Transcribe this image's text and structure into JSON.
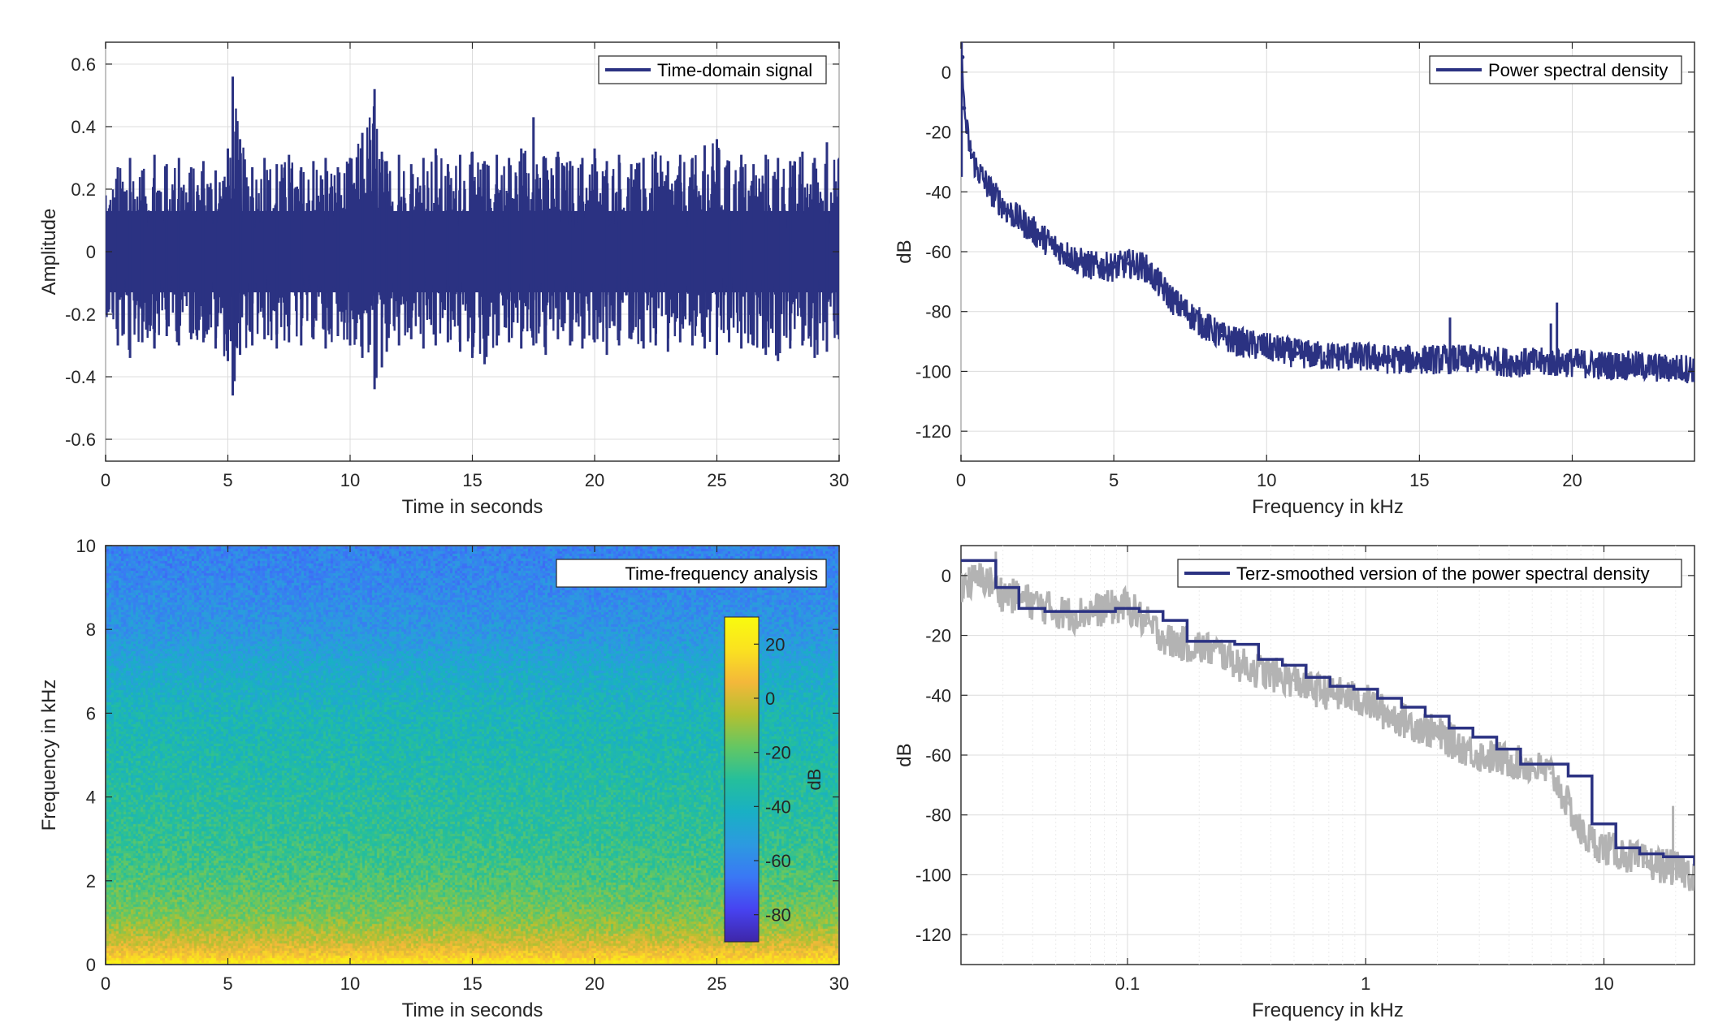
{
  "colors": {
    "signal": "#2B3282",
    "smooth_raw": "#B3B3B3",
    "axis": "#262626",
    "grid": "#DCDCDC"
  },
  "chart_data": [
    {
      "id": "time-domain",
      "type": "line",
      "xlabel": "Time in seconds",
      "ylabel": "Amplitude",
      "xlim": [
        0,
        30
      ],
      "ylim": [
        -0.67,
        0.67
      ],
      "xticks": [
        0,
        5,
        10,
        15,
        20,
        25,
        30
      ],
      "yticks": [
        -0.6,
        -0.4,
        -0.2,
        0,
        0.2,
        0.4,
        0.6
      ],
      "xtick_labels": [
        "0",
        "5",
        "10",
        "15",
        "20",
        "25",
        "30"
      ],
      "ytick_labels": [
        "-0.6",
        "-0.4",
        "-0.2",
        "0",
        "0.2",
        "0.4",
        "0.6"
      ],
      "grid": true,
      "legend_position": "top-right",
      "series": [
        {
          "name": "Time-domain signal",
          "x": [
            0,
            0.5,
            1,
            1.5,
            2,
            2.5,
            3,
            3.5,
            4,
            4.5,
            5,
            5.2,
            5.5,
            6,
            6.5,
            7,
            7.5,
            8,
            8.5,
            9,
            9.5,
            10,
            10.5,
            11,
            11.3,
            11.5,
            12,
            12.5,
            13,
            13.5,
            14,
            14.5,
            15,
            15.5,
            16,
            16.5,
            17,
            17.5,
            18,
            18.5,
            19,
            19.5,
            20,
            20.5,
            21,
            21.5,
            22,
            22.5,
            23,
            23.5,
            24,
            24.5,
            25,
            25.5,
            26,
            26.5,
            27,
            27.5,
            28,
            28.5,
            29,
            29.5,
            30
          ],
          "upper": [
            0.18,
            0.27,
            0.3,
            0.26,
            0.31,
            0.28,
            0.3,
            0.27,
            0.29,
            0.26,
            0.33,
            0.56,
            0.36,
            0.27,
            0.3,
            0.28,
            0.31,
            0.27,
            0.29,
            0.3,
            0.27,
            0.3,
            0.38,
            0.52,
            0.32,
            0.29,
            0.31,
            0.28,
            0.3,
            0.33,
            0.28,
            0.31,
            0.32,
            0.29,
            0.31,
            0.3,
            0.33,
            0.43,
            0.3,
            0.32,
            0.29,
            0.3,
            0.33,
            0.29,
            0.31,
            0.28,
            0.3,
            0.32,
            0.29,
            0.31,
            0.3,
            0.34,
            0.36,
            0.29,
            0.31,
            0.28,
            0.31,
            0.3,
            0.29,
            0.32,
            0.3,
            0.35,
            0.3
          ],
          "lower": [
            -0.2,
            -0.3,
            -0.34,
            -0.29,
            -0.31,
            -0.27,
            -0.3,
            -0.28,
            -0.29,
            -0.31,
            -0.35,
            -0.46,
            -0.33,
            -0.3,
            -0.28,
            -0.31,
            -0.29,
            -0.3,
            -0.28,
            -0.31,
            -0.27,
            -0.3,
            -0.34,
            -0.44,
            -0.37,
            -0.32,
            -0.3,
            -0.28,
            -0.31,
            -0.3,
            -0.29,
            -0.32,
            -0.34,
            -0.36,
            -0.3,
            -0.29,
            -0.31,
            -0.3,
            -0.33,
            -0.28,
            -0.3,
            -0.31,
            -0.29,
            -0.33,
            -0.3,
            -0.28,
            -0.31,
            -0.3,
            -0.32,
            -0.29,
            -0.3,
            -0.31,
            -0.33,
            -0.29,
            -0.31,
            -0.3,
            -0.33,
            -0.35,
            -0.31,
            -0.3,
            -0.34,
            -0.32,
            -0.28
          ]
        }
      ]
    },
    {
      "id": "psd",
      "type": "line",
      "xlabel": "Frequency in kHz",
      "ylabel": "dB",
      "xlim": [
        0,
        24
      ],
      "ylim": [
        -130,
        10
      ],
      "xticks": [
        0,
        5,
        10,
        15,
        20
      ],
      "yticks": [
        -120,
        -100,
        -80,
        -60,
        -40,
        -20,
        0
      ],
      "xtick_labels": [
        "0",
        "5",
        "10",
        "15",
        "20"
      ],
      "ytick_labels": [
        "-120",
        "-100",
        "-80",
        "-60",
        "-40",
        "-20",
        "0"
      ],
      "grid": true,
      "legend_position": "top-right",
      "series": [
        {
          "name": "Power spectral density",
          "x": [
            0,
            0.05,
            0.1,
            0.2,
            0.3,
            0.5,
            1,
            1.5,
            2,
            2.5,
            3,
            3.5,
            4,
            4.5,
            5,
            5.5,
            6,
            6.5,
            7,
            7.5,
            8,
            8.5,
            9,
            10,
            11,
            12,
            13,
            14,
            15,
            16,
            17,
            18,
            19,
            20,
            21,
            22,
            23,
            24
          ],
          "values": [
            -5,
            5,
            -12,
            -20,
            -26,
            -32,
            -40,
            -46,
            -50,
            -54,
            -58,
            -61,
            -64,
            -65,
            -65,
            -64,
            -65,
            -71,
            -77,
            -81,
            -85,
            -88,
            -90,
            -92,
            -94,
            -95,
            -95,
            -96,
            -96,
            -96,
            -96,
            -97,
            -97,
            -97,
            -98,
            -98,
            -99,
            -99
          ],
          "band_width": 5,
          "spikes": [
            [
              16,
              -82
            ],
            [
              19.5,
              -77
            ],
            [
              19.3,
              -84
            ]
          ]
        }
      ]
    },
    {
      "id": "spectrogram",
      "type": "heatmap",
      "xlabel": "Time in seconds",
      "ylabel": "Frequency in kHz",
      "xlim": [
        0,
        30
      ],
      "ylim": [
        0,
        10
      ],
      "xticks": [
        0,
        5,
        10,
        15,
        20,
        25,
        30
      ],
      "yticks": [
        0,
        2,
        4,
        6,
        8,
        10
      ],
      "xtick_labels": [
        "0",
        "5",
        "10",
        "15",
        "20",
        "25",
        "30"
      ],
      "ytick_labels": [
        "0",
        "2",
        "4",
        "6",
        "8",
        "10"
      ],
      "legend_position": "top-right",
      "legend_label": "Time-frequency analysis",
      "freq_profile_khz": [
        0,
        0.2,
        0.5,
        1,
        1.5,
        2,
        3,
        4,
        5,
        6,
        7,
        8,
        9,
        10
      ],
      "freq_profile_db": [
        25,
        12,
        0,
        -12,
        -18,
        -22,
        -28,
        -32,
        -35,
        -38,
        -45,
        -55,
        -60,
        -62
      ],
      "colorbar": {
        "label": "dB",
        "range": [
          -90,
          30
        ],
        "ticks": [
          -80,
          -60,
          -40,
          -20,
          0,
          20
        ],
        "tick_labels": [
          "-80",
          "-60",
          "-40",
          "-20",
          "0",
          "20"
        ],
        "colormap": [
          "#3E26A8",
          "#4743F1",
          "#3A78F5",
          "#2C9AE0",
          "#19B0C4",
          "#25BF9B",
          "#64C763",
          "#B4C030",
          "#F4B83A",
          "#FAE220",
          "#F9FB0E"
        ]
      }
    },
    {
      "id": "terz",
      "type": "line",
      "xlabel": "Frequency in kHz",
      "ylabel": "dB",
      "xscale": "log",
      "xlim": [
        0.02,
        24
      ],
      "ylim": [
        -130,
        10
      ],
      "xticks": [
        0.1,
        1,
        10
      ],
      "yticks": [
        -120,
        -100,
        -80,
        -60,
        -40,
        -20,
        0
      ],
      "xtick_labels": [
        "0.1",
        "1",
        "10"
      ],
      "ytick_labels": [
        "-120",
        "-100",
        "-80",
        "-60",
        "-40",
        "-20",
        "0"
      ],
      "grid": true,
      "legend_position": "top-right",
      "series": [
        {
          "name": "Terz-smoothed version of the power spectral density",
          "edges": [
            0.02,
            0.028,
            0.035,
            0.045,
            0.056,
            0.071,
            0.089,
            0.112,
            0.141,
            0.178,
            0.224,
            0.282,
            0.355,
            0.447,
            0.562,
            0.708,
            0.891,
            1.122,
            1.413,
            1.778,
            2.239,
            2.818,
            3.548,
            4.467,
            5.623,
            7.079,
            8.913,
            11.22,
            14.13,
            17.78,
            24
          ],
          "levels": [
            5,
            -4,
            -11,
            -12,
            -12,
            -12,
            -11,
            -12,
            -15,
            -22,
            -22,
            -23,
            -28,
            -30,
            -34,
            -37,
            -38,
            -41,
            -44,
            -47,
            -51,
            -54,
            -58,
            -63,
            -63,
            -67,
            -83,
            -91,
            -93,
            -94,
            -97
          ]
        },
        {
          "name": "",
          "x": [
            0.02,
            0.025,
            0.03,
            0.04,
            0.05,
            0.06,
            0.08,
            0.1,
            0.12,
            0.15,
            0.2,
            0.25,
            0.3,
            0.4,
            0.5,
            0.6,
            0.8,
            1,
            1.2,
            1.5,
            2,
            2.5,
            3,
            4,
            5,
            6,
            7,
            8,
            9,
            10,
            12,
            15,
            18,
            20,
            24
          ],
          "values": [
            -3,
            -1,
            -6,
            -9,
            -12,
            -13,
            -11,
            -10,
            -16,
            -22,
            -24,
            -26,
            -30,
            -33,
            -35,
            -38,
            -40,
            -42,
            -46,
            -49,
            -53,
            -57,
            -60,
            -62,
            -64,
            -66,
            -76,
            -86,
            -89,
            -91,
            -93,
            -96,
            -97,
            -98,
            -100
          ],
          "band_width": 6
        }
      ]
    }
  ]
}
